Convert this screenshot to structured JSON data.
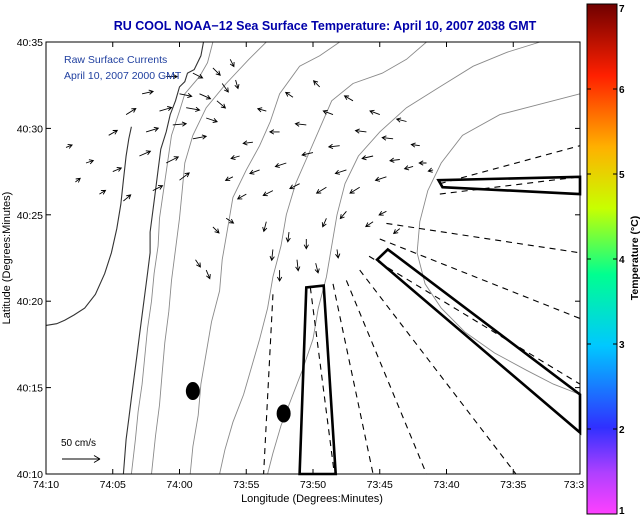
{
  "chart_data": {
    "type": "vector-field map",
    "title": "RU COOL  NOAA−12  Sea Surface Temperature:  April 10, 2007 2038 GMT",
    "xlabel": "Longitude (Degrees:Minutes)",
    "ylabel": "Latitude (Degrees:Minutes)",
    "x_ticks": [
      "74:10",
      "74:05",
      "74:00",
      "73:55",
      "73:50",
      "73:45",
      "73:40",
      "73:35",
      "73:3"
    ],
    "y_ticks": [
      "40:35",
      "40:30",
      "40:25",
      "40:20",
      "40:15",
      "40:10"
    ],
    "xlim_minutes_west": [
      70,
      30
    ],
    "ylim_minutes_north": [
      10,
      35
    ],
    "annotation_lines": [
      "Raw Surface Currents",
      "April 10, 2007 2000 GMT"
    ],
    "scale_label": "50 cm/s",
    "colorbar": {
      "label": "Temperature (°C)",
      "ticks": [
        "1",
        "2",
        "3",
        "4",
        "5",
        "6",
        "7"
      ],
      "range": [
        1,
        7
      ],
      "colors": [
        "#ff40ff",
        "#3030ff",
        "#00c8ff",
        "#00ff90",
        "#c8ff00",
        "#ffb000",
        "#ff2000",
        "#700000"
      ]
    },
    "markers_dots": [
      {
        "lon_min": 59.0,
        "lat_min": 14.8
      },
      {
        "lon_min": 52.2,
        "lat_min": 13.5
      }
    ],
    "current_vectors": [
      {
        "lon": 68.5,
        "lat": 28.9,
        "u": 5,
        "v": 2
      },
      {
        "lon": 67.8,
        "lat": 26.9,
        "u": 4,
        "v": 3
      },
      {
        "lon": 67.0,
        "lat": 28.0,
        "u": 6,
        "v": 2
      },
      {
        "lon": 66.0,
        "lat": 26.2,
        "u": 5,
        "v": 3
      },
      {
        "lon": 65.3,
        "lat": 29.6,
        "u": 7,
        "v": 4
      },
      {
        "lon": 65.0,
        "lat": 27.5,
        "u": 7,
        "v": 3
      },
      {
        "lon": 64.0,
        "lat": 30.8,
        "u": 8,
        "v": 5
      },
      {
        "lon": 64.2,
        "lat": 25.8,
        "u": 6,
        "v": 5
      },
      {
        "lon": 63.0,
        "lat": 28.4,
        "u": 9,
        "v": 4
      },
      {
        "lon": 62.8,
        "lat": 32.0,
        "u": 9,
        "v": 2
      },
      {
        "lon": 62.5,
        "lat": 29.8,
        "u": 10,
        "v": 3
      },
      {
        "lon": 62.0,
        "lat": 26.4,
        "u": 8,
        "v": 4
      },
      {
        "lon": 61.5,
        "lat": 31.0,
        "u": 10,
        "v": 3
      },
      {
        "lon": 61.0,
        "lat": 33.0,
        "u": 9,
        "v": 0
      },
      {
        "lon": 61.0,
        "lat": 28.0,
        "u": 10,
        "v": 5
      },
      {
        "lon": 60.5,
        "lat": 30.2,
        "u": 11,
        "v": 1
      },
      {
        "lon": 60.0,
        "lat": 32.0,
        "u": 10,
        "v": -2
      },
      {
        "lon": 60.0,
        "lat": 27.0,
        "u": 8,
        "v": 6
      },
      {
        "lon": 59.5,
        "lat": 31.2,
        "u": 11,
        "v": -2
      },
      {
        "lon": 59.0,
        "lat": 33.2,
        "u": 8,
        "v": -4
      },
      {
        "lon": 59.0,
        "lat": 29.4,
        "u": 11,
        "v": 2
      },
      {
        "lon": 58.5,
        "lat": 32.0,
        "u": 9,
        "v": -4
      },
      {
        "lon": 58.0,
        "lat": 30.6,
        "u": 9,
        "v": -3
      },
      {
        "lon": 57.5,
        "lat": 33.5,
        "u": 6,
        "v": -6
      },
      {
        "lon": 57.2,
        "lat": 31.6,
        "u": 7,
        "v": -6
      },
      {
        "lon": 56.8,
        "lat": 32.6,
        "u": 5,
        "v": -7
      },
      {
        "lon": 56.2,
        "lat": 34.0,
        "u": 3,
        "v": -6
      },
      {
        "lon": 55.8,
        "lat": 32.8,
        "u": 2,
        "v": -7
      },
      {
        "lon": 58.8,
        "lat": 22.4,
        "u": 4,
        "v": -6
      },
      {
        "lon": 58.0,
        "lat": 21.8,
        "u": 3,
        "v": -7
      },
      {
        "lon": 57.5,
        "lat": 24.3,
        "u": 5,
        "v": -5
      },
      {
        "lon": 56.5,
        "lat": 24.8,
        "u": 6,
        "v": -4
      },
      {
        "lon": 56.0,
        "lat": 27.2,
        "u": -6,
        "v": -3
      },
      {
        "lon": 55.5,
        "lat": 28.4,
        "u": -7,
        "v": -2
      },
      {
        "lon": 55.0,
        "lat": 26.2,
        "u": -7,
        "v": -4
      },
      {
        "lon": 54.5,
        "lat": 29.2,
        "u": -8,
        "v": -1
      },
      {
        "lon": 54.0,
        "lat": 27.6,
        "u": -8,
        "v": -3
      },
      {
        "lon": 53.5,
        "lat": 31.0,
        "u": -7,
        "v": 2
      },
      {
        "lon": 53.0,
        "lat": 26.4,
        "u": -8,
        "v": -4
      },
      {
        "lon": 52.5,
        "lat": 29.8,
        "u": -8,
        "v": 0
      },
      {
        "lon": 52.0,
        "lat": 28.0,
        "u": -9,
        "v": -3
      },
      {
        "lon": 51.5,
        "lat": 31.8,
        "u": -6,
        "v": 4
      },
      {
        "lon": 51.0,
        "lat": 26.8,
        "u": -8,
        "v": -4
      },
      {
        "lon": 50.5,
        "lat": 30.2,
        "u": -9,
        "v": 1
      },
      {
        "lon": 50.0,
        "lat": 28.6,
        "u": -9,
        "v": -2
      },
      {
        "lon": 49.5,
        "lat": 32.4,
        "u": -5,
        "v": 5
      },
      {
        "lon": 49.0,
        "lat": 26.6,
        "u": -8,
        "v": -5
      },
      {
        "lon": 48.5,
        "lat": 30.8,
        "u": -8,
        "v": 3
      },
      {
        "lon": 48.0,
        "lat": 29.0,
        "u": -9,
        "v": -1
      },
      {
        "lon": 47.5,
        "lat": 27.6,
        "u": -9,
        "v": -3
      },
      {
        "lon": 47.0,
        "lat": 31.6,
        "u": -7,
        "v": 4
      },
      {
        "lon": 46.5,
        "lat": 26.6,
        "u": -8,
        "v": -5
      },
      {
        "lon": 46.0,
        "lat": 29.8,
        "u": -9,
        "v": 1
      },
      {
        "lon": 45.5,
        "lat": 28.4,
        "u": -9,
        "v": -2
      },
      {
        "lon": 45.0,
        "lat": 30.8,
        "u": -8,
        "v": 3
      },
      {
        "lon": 44.5,
        "lat": 27.2,
        "u": -9,
        "v": -3
      },
      {
        "lon": 44.0,
        "lat": 29.4,
        "u": -9,
        "v": 1
      },
      {
        "lon": 43.5,
        "lat": 28.2,
        "u": -8,
        "v": -1
      },
      {
        "lon": 43.0,
        "lat": 30.4,
        "u": -8,
        "v": 2
      },
      {
        "lon": 42.5,
        "lat": 27.8,
        "u": -7,
        "v": -2
      },
      {
        "lon": 42.0,
        "lat": 29.0,
        "u": -7,
        "v": 1
      },
      {
        "lon": 41.5,
        "lat": 28.0,
        "u": -6,
        "v": 0
      },
      {
        "lon": 41.0,
        "lat": 27.6,
        "u": -4,
        "v": -1
      },
      {
        "lon": 53.5,
        "lat": 24.6,
        "u": -2,
        "v": -8
      },
      {
        "lon": 53.0,
        "lat": 23.0,
        "u": -1,
        "v": -9
      },
      {
        "lon": 52.5,
        "lat": 21.8,
        "u": 0,
        "v": -9
      },
      {
        "lon": 51.8,
        "lat": 24.0,
        "u": -1,
        "v": -8
      },
      {
        "lon": 51.2,
        "lat": 22.4,
        "u": 1,
        "v": -9
      },
      {
        "lon": 50.5,
        "lat": 23.6,
        "u": 0,
        "v": -8
      },
      {
        "lon": 49.8,
        "lat": 22.2,
        "u": 2,
        "v": -8
      },
      {
        "lon": 49.0,
        "lat": 24.8,
        "u": -3,
        "v": -7
      },
      {
        "lon": 48.2,
        "lat": 23.0,
        "u": 1,
        "v": -7
      },
      {
        "lon": 47.5,
        "lat": 25.2,
        "u": -5,
        "v": -6
      },
      {
        "lon": 45.5,
        "lat": 24.6,
        "u": -6,
        "v": -4
      },
      {
        "lon": 44.5,
        "lat": 25.2,
        "u": -6,
        "v": -3
      },
      {
        "lon": 43.5,
        "lat": 24.2,
        "u": -5,
        "v": -4
      }
    ],
    "dashed_radials": [
      {
        "from": [
          40.5,
          26.2
        ],
        "to": [
          30,
          27.2
        ]
      },
      {
        "from": [
          40.5,
          26.8
        ],
        "to": [
          30,
          29.0
        ]
      },
      {
        "from": [
          44.5,
          24.5
        ],
        "to": [
          30,
          22.8
        ]
      },
      {
        "from": [
          45.0,
          23.6
        ],
        "to": [
          30,
          19.0
        ]
      },
      {
        "from": [
          45.8,
          22.6
        ],
        "to": [
          30,
          15.2
        ]
      },
      {
        "from": [
          46.5,
          21.8
        ],
        "to": [
          34.8,
          10.0
        ]
      },
      {
        "from": [
          47.5,
          21.2
        ],
        "to": [
          41.5,
          10.0
        ]
      },
      {
        "from": [
          48.5,
          21.0
        ],
        "to": [
          45.5,
          10.0
        ]
      },
      {
        "from": [
          50.2,
          20.8
        ],
        "to": [
          48.4,
          10.0
        ]
      },
      {
        "from": [
          53.0,
          20.4
        ],
        "to": [
          53.7,
          10.0
        ]
      }
    ],
    "outlined_polygons": [
      [
        [
          40.6,
          27.0
        ],
        [
          30,
          27.2
        ],
        [
          30,
          26.2
        ],
        [
          40.3,
          26.6
        ]
      ],
      [
        [
          45.2,
          22.4
        ],
        [
          44.4,
          23.0
        ],
        [
          30,
          14.6
        ],
        [
          30,
          12.4
        ]
      ],
      [
        [
          51.0,
          10.0
        ],
        [
          50.5,
          20.8
        ],
        [
          49.2,
          20.9
        ],
        [
          48.3,
          10.0
        ]
      ]
    ],
    "coastline": [
      [
        58.2,
        35
      ],
      [
        58.4,
        34.2
      ],
      [
        58.9,
        33.4
      ],
      [
        59.4,
        33.2
      ],
      [
        59.6,
        32.7
      ],
      [
        60.0,
        32.4
      ],
      [
        60.3,
        31.6
      ],
      [
        60.7,
        30.8
      ],
      [
        61.0,
        29.8
      ],
      [
        61.4,
        28.8
      ],
      [
        61.6,
        27.6
      ],
      [
        61.8,
        26.4
      ],
      [
        62.0,
        25.2
      ],
      [
        62.2,
        24.0
      ],
      [
        62.2,
        22.8
      ],
      [
        62.4,
        21.6
      ],
      [
        62.6,
        20.4
      ],
      [
        62.8,
        19.2
      ],
      [
        63.0,
        18.0
      ],
      [
        63.2,
        16.8
      ],
      [
        63.4,
        15.6
      ],
      [
        63.6,
        14.4
      ],
      [
        63.8,
        13.2
      ],
      [
        64.0,
        12.0
      ],
      [
        64.2,
        10.0
      ]
    ],
    "inlet_shore": [
      [
        63.6,
        30.1
      ],
      [
        63.8,
        29.4
      ],
      [
        64.0,
        28.4
      ],
      [
        64.2,
        27.0
      ],
      [
        64.4,
        25.6
      ],
      [
        64.7,
        24.2
      ],
      [
        65.1,
        22.8
      ],
      [
        65.6,
        21.6
      ],
      [
        66.3,
        20.4
      ],
      [
        67.1,
        19.6
      ],
      [
        67.9,
        19.2
      ],
      [
        68.6,
        18.9
      ],
      [
        69.2,
        18.7
      ],
      [
        70,
        18.6
      ]
    ],
    "bathymetry_contours": [
      [
        [
          57.5,
          35
        ],
        [
          57.9,
          33.8
        ],
        [
          58.5,
          33.0
        ],
        [
          59.6,
          32.0
        ],
        [
          60.0,
          31.0
        ],
        [
          60.6,
          29.6
        ],
        [
          60.9,
          28.0
        ],
        [
          61.2,
          26.4
        ],
        [
          61.5,
          24.8
        ],
        [
          61.6,
          23.2
        ],
        [
          61.9,
          21.6
        ],
        [
          62.1,
          20.0
        ],
        [
          62.4,
          18.4
        ],
        [
          62.6,
          16.8
        ],
        [
          62.8,
          15.2
        ],
        [
          63.1,
          13.6
        ],
        [
          63.3,
          12.0
        ],
        [
          63.6,
          10.0
        ]
      ],
      [
        [
          53.5,
          35
        ],
        [
          54.8,
          34.0
        ],
        [
          56.5,
          32.6
        ],
        [
          58.0,
          31.2
        ],
        [
          59.0,
          29.6
        ],
        [
          59.6,
          28.0
        ],
        [
          59.8,
          26.4
        ],
        [
          60.0,
          24.8
        ],
        [
          60.3,
          23.0
        ],
        [
          60.6,
          21.2
        ],
        [
          60.8,
          19.4
        ],
        [
          61.1,
          17.6
        ],
        [
          61.3,
          15.8
        ],
        [
          61.5,
          14.0
        ],
        [
          61.8,
          12.2
        ],
        [
          62.1,
          10.0
        ]
      ],
      [
        [
          48.0,
          35
        ],
        [
          49.5,
          34.2
        ],
        [
          51.0,
          33.6
        ],
        [
          52.5,
          32.0
        ],
        [
          53.2,
          30.4
        ],
        [
          54.0,
          29.0
        ],
        [
          55.0,
          27.6
        ],
        [
          56.0,
          26.0
        ],
        [
          56.4,
          24.2
        ],
        [
          56.8,
          22.4
        ],
        [
          57.0,
          20.6
        ],
        [
          57.6,
          18.8
        ],
        [
          58.0,
          17.0
        ],
        [
          58.4,
          15.2
        ],
        [
          58.6,
          13.4
        ],
        [
          59.0,
          11.6
        ],
        [
          59.2,
          10.0
        ]
      ],
      [
        [
          41.5,
          35
        ],
        [
          43.0,
          34.0
        ],
        [
          44.8,
          33.2
        ],
        [
          47.0,
          32.6
        ],
        [
          48.6,
          31.6
        ],
        [
          49.5,
          30.0
        ],
        [
          50.4,
          28.4
        ],
        [
          51.3,
          26.8
        ],
        [
          52.0,
          25.0
        ],
        [
          52.4,
          23.2
        ],
        [
          53.0,
          21.4
        ],
        [
          53.4,
          19.6
        ],
        [
          54.0,
          17.8
        ],
        [
          54.6,
          16.2
        ],
        [
          55.2,
          14.6
        ],
        [
          56.0,
          13.0
        ],
        [
          56.6,
          11.4
        ],
        [
          57.0,
          10.0
        ]
      ],
      [
        [
          33.0,
          35
        ],
        [
          35.5,
          34.4
        ],
        [
          38.0,
          33.6
        ],
        [
          40.5,
          32.4
        ],
        [
          43.0,
          31.2
        ],
        [
          45.0,
          29.8
        ],
        [
          46.6,
          28.4
        ],
        [
          47.6,
          26.8
        ],
        [
          48.2,
          25.0
        ],
        [
          48.6,
          23.2
        ],
        [
          49.0,
          21.4
        ],
        [
          49.6,
          19.6
        ],
        [
          50.0,
          17.8
        ],
        [
          50.8,
          16.0
        ],
        [
          51.6,
          14.4
        ],
        [
          52.4,
          12.8
        ],
        [
          53.0,
          11.2
        ],
        [
          53.4,
          10.0
        ]
      ],
      [
        [
          30,
          32.0
        ],
        [
          33.0,
          31.4
        ],
        [
          36.0,
          30.8
        ],
        [
          38.8,
          29.6
        ],
        [
          40.4,
          28.0
        ],
        [
          41.4,
          26.4
        ],
        [
          42.0,
          24.6
        ],
        [
          42.2,
          22.8
        ],
        [
          41.6,
          21.0
        ],
        [
          40.4,
          19.6
        ],
        [
          38.6,
          18.2
        ],
        [
          36.4,
          17.0
        ],
        [
          34.0,
          16.0
        ],
        [
          32.0,
          15.2
        ],
        [
          30,
          14.6
        ]
      ]
    ]
  }
}
